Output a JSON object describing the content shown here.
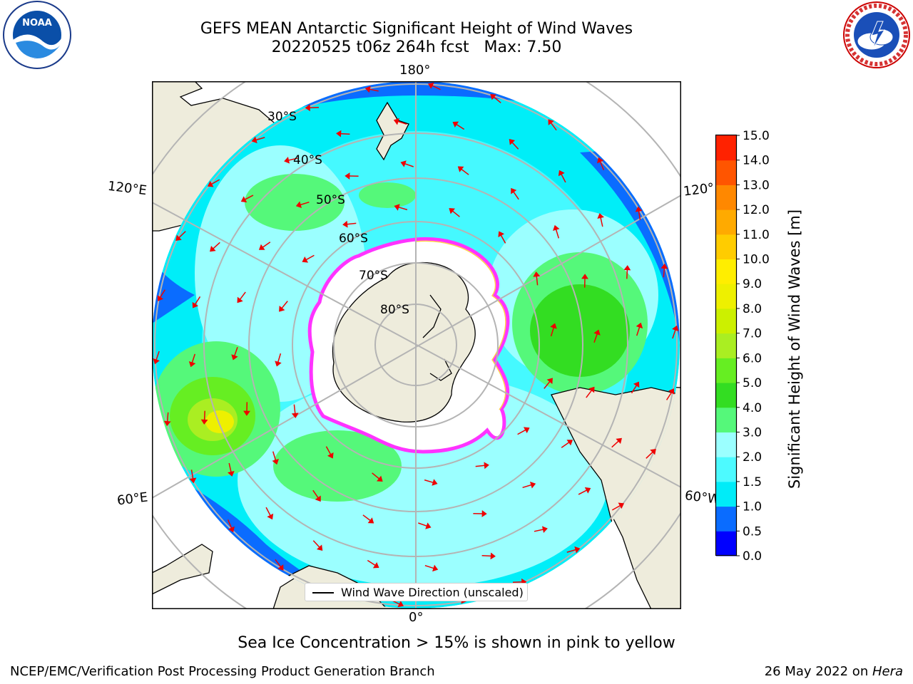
{
  "title": {
    "line1": "GEFS MEAN Antarctic Significant Height of Wind Waves",
    "line2": "20220525 t06z 264h fcst   Max: 7.50"
  },
  "map": {
    "projection": "south-polar-stereographic",
    "longitude_labels": {
      "top": "180°",
      "bottom": "0°",
      "upper_left": "120°E",
      "lower_left": "60°E",
      "upper_right": "120°",
      "lower_right": "60°W"
    },
    "latitude_labels": [
      "30°S",
      "40°S",
      "50°S",
      "60°S",
      "70°S",
      "80°S"
    ],
    "colors": {
      "land": "#eeecdc",
      "ice_interior": "#ffffff",
      "ice_edge": "#ff33ff",
      "ice_edge_inner": "#ffd24d",
      "grid": "#b4b4b4",
      "arrow": "#ee0000"
    },
    "max_value": 7.5,
    "legend_label": "Wind Wave Direction (unscaled)"
  },
  "colorbar": {
    "label": "Significant Height of Wind Waves [m]",
    "ticks": [
      "0.0",
      "0.5",
      "1.0",
      "1.5",
      "2.0",
      "3.0",
      "4.0",
      "5.0",
      "6.0",
      "7.0",
      "8.0",
      "9.0",
      "10.0",
      "11.0",
      "12.0",
      "13.0",
      "14.0",
      "15.0"
    ],
    "colors": [
      "#0000ff",
      "#0a6cff",
      "#00ecf8",
      "#4dfaff",
      "#9bffff",
      "#55f87a",
      "#33dd22",
      "#66ee22",
      "#aaee22",
      "#ccf000",
      "#eef000",
      "#ffee00",
      "#ffcc00",
      "#ffaa00",
      "#ff8800",
      "#ff5500",
      "#ff2200"
    ]
  },
  "caption": "Sea Ice Concentration > 15% is shown in pink to yellow",
  "footer": {
    "left": "NCEP/EMC/Verification Post Processing Product Generation Branch",
    "right_date": "26 May 2022 on ",
    "right_host": "Hera"
  },
  "logos": {
    "noaa": "NOAA",
    "nws": "NATIONAL WEATHER SERVICE"
  }
}
